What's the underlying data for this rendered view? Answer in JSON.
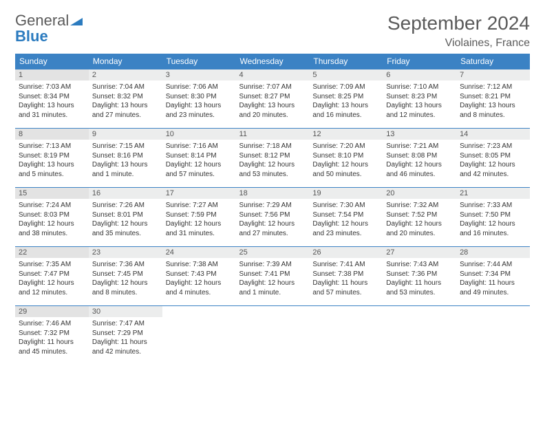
{
  "logo": {
    "line1": "General",
    "line2": "Blue"
  },
  "header": {
    "month_title": "September 2024",
    "location": "Violaines, France"
  },
  "colors": {
    "header_bg": "#3b82c4",
    "header_text": "#ffffff",
    "dayhead_bg": "#eceded",
    "dayhead_sunday_bg": "#e3e3e3",
    "rule": "#3b82c4",
    "text": "#333333",
    "title_text": "#5a5a5a",
    "logo_blue": "#2b7bbf"
  },
  "weekdays": [
    "Sunday",
    "Monday",
    "Tuesday",
    "Wednesday",
    "Thursday",
    "Friday",
    "Saturday"
  ],
  "days": [
    {
      "n": 1,
      "sunrise": "7:03 AM",
      "sunset": "8:34 PM",
      "daylight": "13 hours and 31 minutes."
    },
    {
      "n": 2,
      "sunrise": "7:04 AM",
      "sunset": "8:32 PM",
      "daylight": "13 hours and 27 minutes."
    },
    {
      "n": 3,
      "sunrise": "7:06 AM",
      "sunset": "8:30 PM",
      "daylight": "13 hours and 23 minutes."
    },
    {
      "n": 4,
      "sunrise": "7:07 AM",
      "sunset": "8:27 PM",
      "daylight": "13 hours and 20 minutes."
    },
    {
      "n": 5,
      "sunrise": "7:09 AM",
      "sunset": "8:25 PM",
      "daylight": "13 hours and 16 minutes."
    },
    {
      "n": 6,
      "sunrise": "7:10 AM",
      "sunset": "8:23 PM",
      "daylight": "13 hours and 12 minutes."
    },
    {
      "n": 7,
      "sunrise": "7:12 AM",
      "sunset": "8:21 PM",
      "daylight": "13 hours and 8 minutes."
    },
    {
      "n": 8,
      "sunrise": "7:13 AM",
      "sunset": "8:19 PM",
      "daylight": "13 hours and 5 minutes."
    },
    {
      "n": 9,
      "sunrise": "7:15 AM",
      "sunset": "8:16 PM",
      "daylight": "13 hours and 1 minute."
    },
    {
      "n": 10,
      "sunrise": "7:16 AM",
      "sunset": "8:14 PM",
      "daylight": "12 hours and 57 minutes."
    },
    {
      "n": 11,
      "sunrise": "7:18 AM",
      "sunset": "8:12 PM",
      "daylight": "12 hours and 53 minutes."
    },
    {
      "n": 12,
      "sunrise": "7:20 AM",
      "sunset": "8:10 PM",
      "daylight": "12 hours and 50 minutes."
    },
    {
      "n": 13,
      "sunrise": "7:21 AM",
      "sunset": "8:08 PM",
      "daylight": "12 hours and 46 minutes."
    },
    {
      "n": 14,
      "sunrise": "7:23 AM",
      "sunset": "8:05 PM",
      "daylight": "12 hours and 42 minutes."
    },
    {
      "n": 15,
      "sunrise": "7:24 AM",
      "sunset": "8:03 PM",
      "daylight": "12 hours and 38 minutes."
    },
    {
      "n": 16,
      "sunrise": "7:26 AM",
      "sunset": "8:01 PM",
      "daylight": "12 hours and 35 minutes."
    },
    {
      "n": 17,
      "sunrise": "7:27 AM",
      "sunset": "7:59 PM",
      "daylight": "12 hours and 31 minutes."
    },
    {
      "n": 18,
      "sunrise": "7:29 AM",
      "sunset": "7:56 PM",
      "daylight": "12 hours and 27 minutes."
    },
    {
      "n": 19,
      "sunrise": "7:30 AM",
      "sunset": "7:54 PM",
      "daylight": "12 hours and 23 minutes."
    },
    {
      "n": 20,
      "sunrise": "7:32 AM",
      "sunset": "7:52 PM",
      "daylight": "12 hours and 20 minutes."
    },
    {
      "n": 21,
      "sunrise": "7:33 AM",
      "sunset": "7:50 PM",
      "daylight": "12 hours and 16 minutes."
    },
    {
      "n": 22,
      "sunrise": "7:35 AM",
      "sunset": "7:47 PM",
      "daylight": "12 hours and 12 minutes."
    },
    {
      "n": 23,
      "sunrise": "7:36 AM",
      "sunset": "7:45 PM",
      "daylight": "12 hours and 8 minutes."
    },
    {
      "n": 24,
      "sunrise": "7:38 AM",
      "sunset": "7:43 PM",
      "daylight": "12 hours and 4 minutes."
    },
    {
      "n": 25,
      "sunrise": "7:39 AM",
      "sunset": "7:41 PM",
      "daylight": "12 hours and 1 minute."
    },
    {
      "n": 26,
      "sunrise": "7:41 AM",
      "sunset": "7:38 PM",
      "daylight": "11 hours and 57 minutes."
    },
    {
      "n": 27,
      "sunrise": "7:43 AM",
      "sunset": "7:36 PM",
      "daylight": "11 hours and 53 minutes."
    },
    {
      "n": 28,
      "sunrise": "7:44 AM",
      "sunset": "7:34 PM",
      "daylight": "11 hours and 49 minutes."
    },
    {
      "n": 29,
      "sunrise": "7:46 AM",
      "sunset": "7:32 PM",
      "daylight": "11 hours and 45 minutes."
    },
    {
      "n": 30,
      "sunrise": "7:47 AM",
      "sunset": "7:29 PM",
      "daylight": "11 hours and 42 minutes."
    }
  ],
  "labels": {
    "sunrise": "Sunrise:",
    "sunset": "Sunset:",
    "daylight": "Daylight:"
  },
  "layout": {
    "first_weekday_index": 0,
    "rows": 5,
    "cols": 7
  }
}
